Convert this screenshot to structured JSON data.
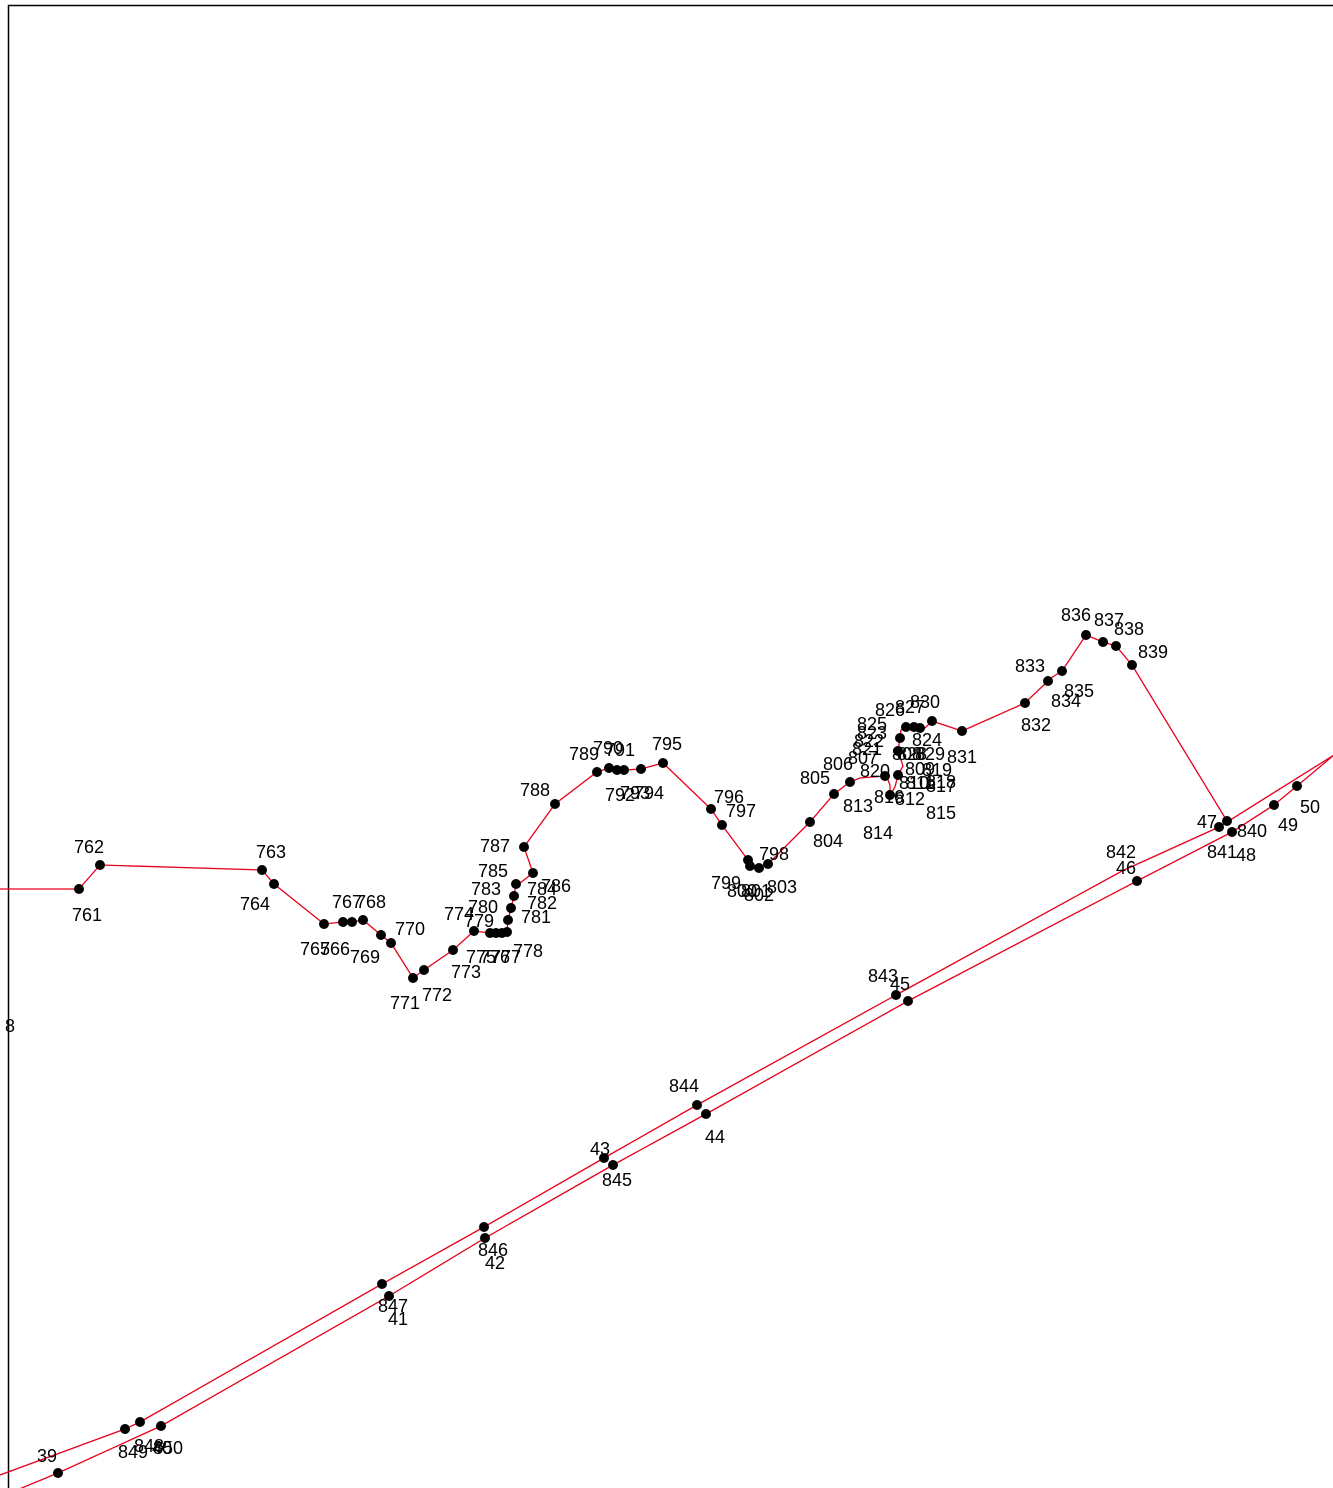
{
  "colors": {
    "background": "#ffffff",
    "line": "#e8001c",
    "point": "#000000",
    "border": "#000000"
  },
  "labels": {
    "l761": "761",
    "l762": "762",
    "l763": "763",
    "l764": "764",
    "l765": "765",
    "l766": "766",
    "l767": "767",
    "l768": "768",
    "l769": "769",
    "l770": "770",
    "l771": "771",
    "l772": "772",
    "l773": "773",
    "l774": "774",
    "l775": "775",
    "l776": "776",
    "l777": "777",
    "l778": "778",
    "l779": "779",
    "l780": "780",
    "l781": "781",
    "l782": "782",
    "l783": "783",
    "l784": "784",
    "l785": "785",
    "l786": "786",
    "l787": "787",
    "l788": "788",
    "l789": "789",
    "l790": "790",
    "l791": "791",
    "l792": "792",
    "l793": "793",
    "l794": "794",
    "l795": "795",
    "l796": "796",
    "l797": "797",
    "l798": "798",
    "l799": "799",
    "l800": "800",
    "l801": "801",
    "l802": "802",
    "l803": "803",
    "l804": "804",
    "l805": "805",
    "l806": "806",
    "l807": "807",
    "l808": "808",
    "l809": "809",
    "l810": "810",
    "l811": "811",
    "l812": "812",
    "l813": "813",
    "l814": "814",
    "l815": "815",
    "l816": "816",
    "l817": "817",
    "l818": "818",
    "l819": "819",
    "l820": "820",
    "l821": "821",
    "l822": "822",
    "l823": "823",
    "l824": "824",
    "l825": "825",
    "l826": "826",
    "l827": "827",
    "l828": "828",
    "l829": "829",
    "l830": "830",
    "l831": "831",
    "l832": "832",
    "l833": "833",
    "l834": "834",
    "l835": "835",
    "l836": "836",
    "l837": "837",
    "l838": "838",
    "l839": "839",
    "l840": "840",
    "l841": "841",
    "l842": "842",
    "l843": "843",
    "l844": "844",
    "l845": "845",
    "l846": "846",
    "l847": "847",
    "l848": "848",
    "l849": "849",
    "l850": "850",
    "l39": "39",
    "l40": "40",
    "l41": "41",
    "l42": "42",
    "l43": "43",
    "l44": "44",
    "l45": "45",
    "l46": "46",
    "l47": "47",
    "l48": "48",
    "l49": "49",
    "l50": "50",
    "edge_left": "8"
  }
}
